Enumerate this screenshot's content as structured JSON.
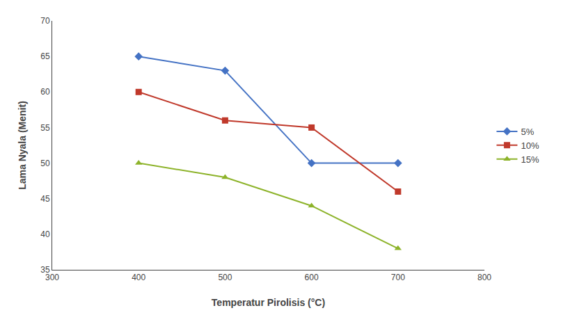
{
  "chart_data": {
    "type": "line",
    "xlabel": "Temperatur Pirolisis (°C)",
    "ylabel": "Lama Nyala (Menit)",
    "x": [
      400,
      500,
      600,
      700
    ],
    "series": [
      {
        "name": "5%",
        "color": "#4472C4",
        "marker": "diamond",
        "values": [
          65,
          63,
          50,
          50
        ]
      },
      {
        "name": "10%",
        "color": "#C0392B",
        "marker": "square",
        "values": [
          60,
          56,
          55,
          46
        ]
      },
      {
        "name": "15%",
        "color": "#8DB32A",
        "marker": "triangle-up",
        "values": [
          50,
          48,
          44,
          38
        ]
      }
    ],
    "xlim": [
      300,
      800
    ],
    "ylim": [
      35,
      70
    ],
    "xticks": [
      300,
      400,
      500,
      600,
      700,
      800
    ],
    "yticks": [
      35,
      40,
      45,
      50,
      55,
      60,
      65,
      70
    ],
    "grid": false,
    "legend": "right"
  }
}
